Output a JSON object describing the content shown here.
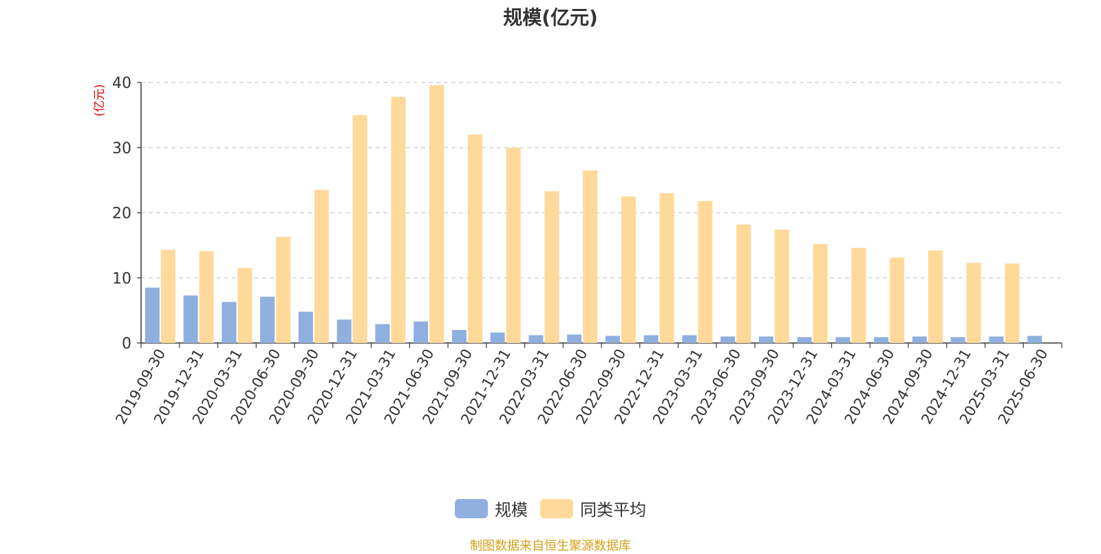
{
  "chart_data": {
    "type": "bar",
    "title": "规模(亿元)",
    "ylabel": "(亿元)",
    "ylim": [
      0,
      40
    ],
    "yticks": [
      0,
      10,
      20,
      30,
      40
    ],
    "grid": true,
    "legend_position": "bottom",
    "categories": [
      "2019-09-30",
      "2019-12-31",
      "2020-03-31",
      "2020-06-30",
      "2020-09-30",
      "2020-12-31",
      "2021-03-31",
      "2021-06-30",
      "2021-09-30",
      "2021-12-31",
      "2022-03-31",
      "2022-06-30",
      "2022-09-30",
      "2022-12-31",
      "2023-03-31",
      "2023-06-30",
      "2023-09-30",
      "2023-12-31",
      "2024-03-31",
      "2024-06-30",
      "2024-09-30",
      "2024-12-31",
      "2025-03-31",
      "2025-06-30"
    ],
    "series": [
      {
        "name": "规模",
        "color": "#8fb0df",
        "values": [
          8.5,
          7.3,
          6.3,
          7.1,
          4.8,
          3.6,
          2.9,
          3.3,
          2.0,
          1.6,
          1.2,
          1.3,
          1.1,
          1.2,
          1.2,
          1.0,
          1.0,
          0.9,
          0.9,
          0.9,
          1.0,
          0.9,
          1.0,
          1.1
        ]
      },
      {
        "name": "同类平均",
        "color": "#ffd99a",
        "values": [
          14.3,
          14.1,
          11.5,
          16.3,
          23.5,
          35.0,
          37.8,
          39.6,
          32.0,
          30.0,
          23.3,
          26.5,
          22.5,
          23.0,
          21.8,
          18.2,
          17.4,
          15.2,
          14.6,
          13.1,
          14.2,
          12.3,
          12.2,
          null
        ]
      }
    ]
  },
  "source_text": "制图数据来自恒生聚源数据库"
}
